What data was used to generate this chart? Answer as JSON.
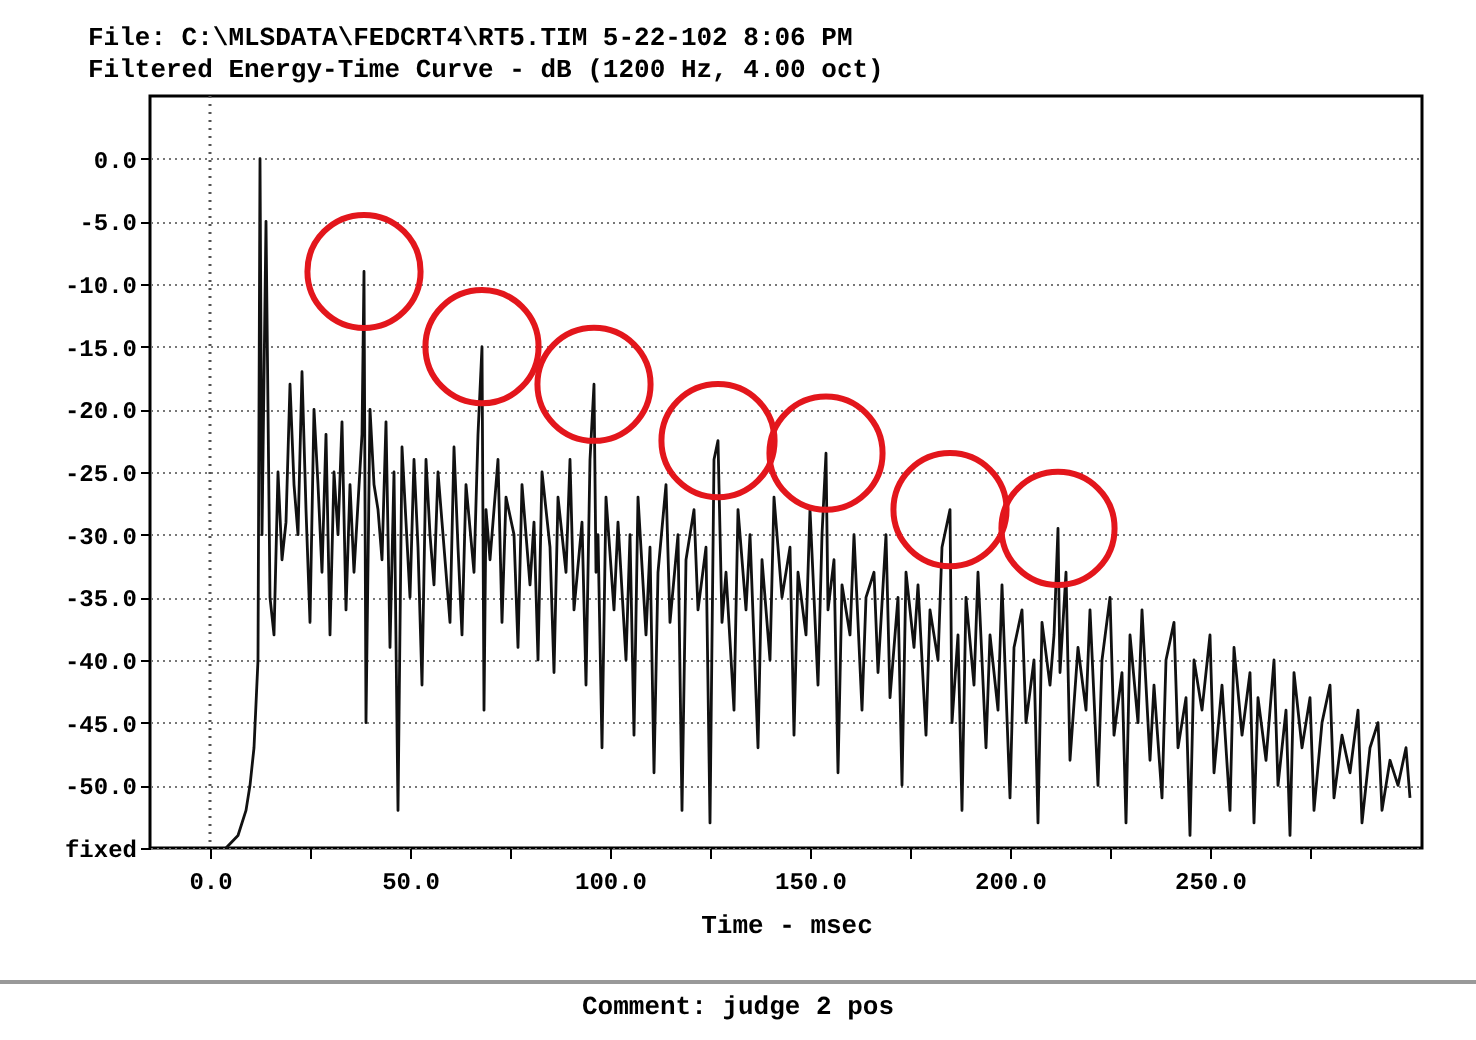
{
  "chart_data": {
    "type": "line",
    "title": "File: C:\\MLSDATA\\FEDCRT4\\RT5.TIM 5-22-102 8:06 PM",
    "subtitle": "Filtered Energy-Time Curve - dB (1200 Hz, 4.00 oct)",
    "xlabel": "Time - msec",
    "annotations": [
      "Comment: judge 2 pos"
    ],
    "xlim": [
      -15,
      303
    ],
    "ylim": [
      -55,
      5
    ],
    "xticks": [
      {
        "value": 0,
        "label": "0.0"
      },
      {
        "value": 25,
        "label": null
      },
      {
        "value": 50,
        "label": "50.0"
      },
      {
        "value": 75,
        "label": null
      },
      {
        "value": 100,
        "label": "100.0"
      },
      {
        "value": 125,
        "label": null
      },
      {
        "value": 150,
        "label": "150.0"
      },
      {
        "value": 175,
        "label": null
      },
      {
        "value": 200,
        "label": "200.0"
      },
      {
        "value": 225,
        "label": null
      },
      {
        "value": 250,
        "label": "250.0"
      },
      {
        "value": 275,
        "label": null
      }
    ],
    "yticks": [
      {
        "value": 0,
        "label": "0.0"
      },
      {
        "value": -5,
        "label": "-5.0"
      },
      {
        "value": -10,
        "label": "-10.0"
      },
      {
        "value": -15,
        "label": "-15.0"
      },
      {
        "value": -20,
        "label": "-20.0"
      },
      {
        "value": -25,
        "label": "-25.0"
      },
      {
        "value": -30,
        "label": "-30.0"
      },
      {
        "value": -35,
        "label": "-35.0"
      },
      {
        "value": -40,
        "label": "-40.0"
      },
      {
        "value": -45,
        "label": "-45.0"
      },
      {
        "value": -50,
        "label": "-50.0"
      },
      {
        "value": -55,
        "label": "fixed"
      }
    ],
    "grid": "y",
    "ref_lines": [
      {
        "axis": "x",
        "value": 0,
        "color": "#555555",
        "line_style": "dotted"
      }
    ],
    "series": [
      {
        "type": "line",
        "color": "#111111",
        "x": [
          4,
          7,
          9,
          10,
          11,
          12,
          12.5,
          13,
          14,
          15,
          16,
          17,
          18,
          19,
          20,
          21,
          22,
          23,
          24,
          25,
          26,
          27,
          28,
          29,
          30,
          31,
          32,
          33,
          34,
          35,
          36,
          38,
          38.5,
          39,
          40,
          41,
          42,
          43,
          44,
          45,
          46,
          47,
          48,
          50,
          51,
          52,
          53,
          54,
          55,
          56,
          57,
          58,
          60,
          61,
          62,
          63,
          64,
          66,
          67,
          68,
          68.5,
          69,
          70,
          72,
          73,
          74,
          76,
          77,
          78,
          80,
          81,
          82,
          83,
          85,
          86,
          87,
          89,
          90,
          91,
          93,
          94,
          95,
          96,
          96.5,
          97,
          98,
          99,
          101,
          102,
          104,
          105,
          106,
          107,
          109,
          110,
          111,
          112,
          114,
          115,
          117,
          118,
          119,
          121,
          122,
          124,
          125,
          126,
          127,
          128,
          129,
          131,
          132,
          134,
          135,
          137,
          138,
          140,
          141,
          143,
          145,
          146,
          147,
          149,
          150,
          152,
          153,
          154,
          154.5,
          156,
          157,
          158,
          160,
          161,
          163,
          164,
          166,
          167,
          169,
          170,
          172,
          173,
          174,
          176,
          177,
          179,
          180,
          182,
          183,
          185,
          185.5,
          187,
          188,
          189,
          191,
          192,
          194,
          195,
          197,
          198,
          200,
          201,
          203,
          204,
          206,
          207,
          208,
          210,
          211,
          212,
          212.5,
          214,
          215,
          217,
          219,
          220,
          222,
          223,
          225,
          226,
          228,
          229,
          230,
          232,
          233,
          235,
          236,
          238,
          239,
          241,
          242,
          244,
          245,
          246,
          248,
          250,
          251,
          253,
          255,
          256,
          258,
          260,
          261,
          262,
          264,
          266,
          267,
          269,
          270,
          271,
          273,
          275,
          276,
          278,
          280,
          281,
          283,
          285,
          287,
          288,
          290,
          292,
          293,
          295,
          297,
          299,
          300
        ],
        "values": [
          -55,
          -54,
          -52,
          -50,
          -47,
          -40,
          0,
          -30,
          -5,
          -35,
          -38,
          -25,
          -32,
          -29,
          -18,
          -26,
          -30,
          -17,
          -28,
          -37,
          -20,
          -26,
          -33,
          -22,
          -38,
          -25,
          -30,
          -21,
          -36,
          -26,
          -33,
          -22,
          -9,
          -45,
          -20,
          -26,
          -28,
          -32,
          -21,
          -39,
          -25,
          -52,
          -23,
          -35,
          -24,
          -31,
          -42,
          -24,
          -30,
          -34,
          -25,
          -29,
          -37,
          -23,
          -31,
          -38,
          -26,
          -33,
          -22,
          -15,
          -44,
          -28,
          -32,
          -24,
          -37,
          -27,
          -30,
          -39,
          -26,
          -34,
          -29,
          -40,
          -25,
          -31,
          -41,
          -27,
          -33,
          -24,
          -36,
          -29,
          -42,
          -24,
          -18,
          -33,
          -30,
          -47,
          -27,
          -36,
          -29,
          -40,
          -30,
          -46,
          -27,
          -38,
          -31,
          -49,
          -33,
          -26,
          -37,
          -30,
          -52,
          -32,
          -28,
          -36,
          -31,
          -53,
          -24,
          -22.5,
          -37,
          -33,
          -44,
          -28,
          -36,
          -30,
          -47,
          -32,
          -40,
          -27,
          -35,
          -31,
          -46,
          -33,
          -38,
          -28,
          -42,
          -30,
          -23.5,
          -36,
          -32,
          -49,
          -34,
          -38,
          -30,
          -44,
          -35,
          -33,
          -41,
          -30,
          -43,
          -35,
          -50,
          -33,
          -39,
          -34,
          -46,
          -36,
          -40,
          -31,
          -28,
          -45,
          -38,
          -52,
          -35,
          -42,
          -33,
          -47,
          -38,
          -44,
          -34,
          -51,
          -39,
          -36,
          -45,
          -40,
          -53,
          -37,
          -42,
          -38,
          -29.5,
          -41,
          -33,
          -48,
          -39,
          -44,
          -36,
          -50,
          -40,
          -35,
          -46,
          -41,
          -53,
          -38,
          -45,
          -36,
          -48,
          -42,
          -51,
          -40,
          -37,
          -47,
          -43,
          -54,
          -40,
          -44,
          -38,
          -49,
          -42,
          -52,
          -39,
          -46,
          -41,
          -53,
          -43,
          -48,
          -40,
          -50,
          -44,
          -54,
          -41,
          -47,
          -43,
          -52,
          -45,
          -42,
          -51,
          -46,
          -49,
          -44,
          -53,
          -47,
          -45,
          -52,
          -48,
          -50,
          -47,
          -51
        ]
      },
      {
        "type": "scatter",
        "color": "#e3161c",
        "x": [
          38.5,
          68,
          96,
          127,
          154,
          185,
          212
        ],
        "values": [
          -9,
          -15,
          -18,
          -22.5,
          -23.5,
          -28,
          -29.5
        ]
      }
    ]
  }
}
